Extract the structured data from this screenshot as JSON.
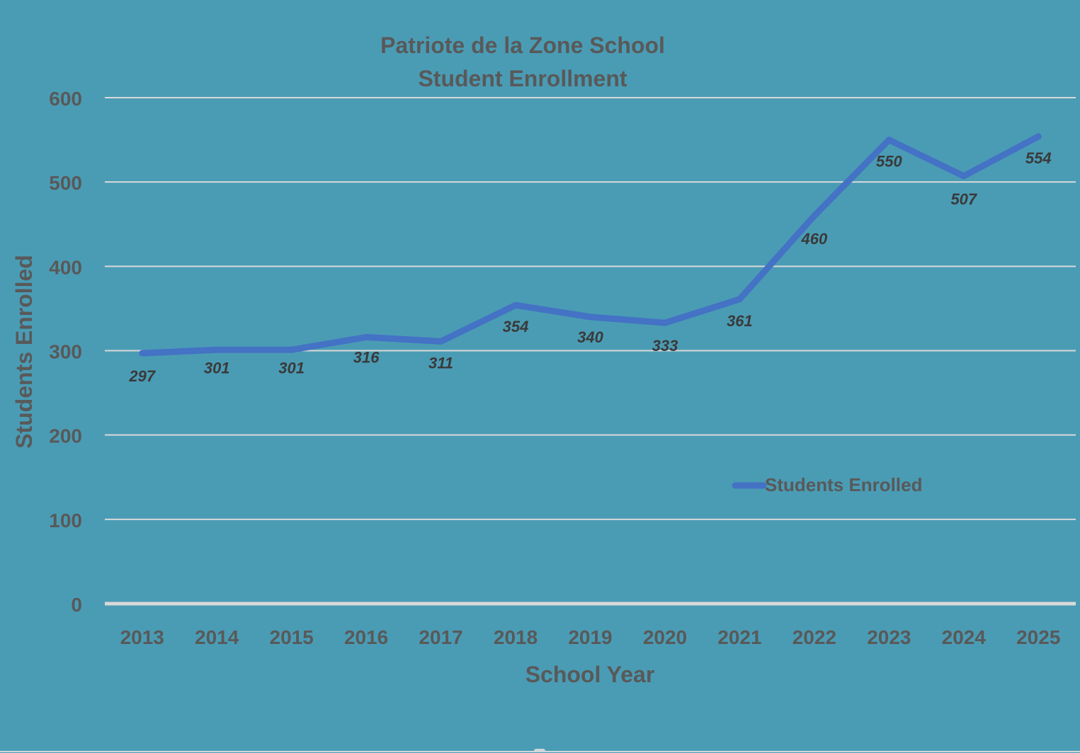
{
  "chart_data": {
    "type": "line",
    "title": "Patriote de la Zone School",
    "subtitle": "Student Enrollment",
    "xlabel": "School Year",
    "ylabel": "Students Enrolled",
    "categories": [
      "2013",
      "2014",
      "2015",
      "2016",
      "2017",
      "2018",
      "2019",
      "2020",
      "2021",
      "2022",
      "2023",
      "2024",
      "2025"
    ],
    "series": [
      {
        "name": "Students Enrolled",
        "color": "#4472c4",
        "values": [
          297,
          301,
          301,
          316,
          311,
          354,
          340,
          333,
          361,
          460,
          550,
          507,
          554
        ]
      }
    ],
    "ylim": [
      0,
      600
    ],
    "yticks": [
      0,
      100,
      200,
      300,
      400,
      500,
      600
    ],
    "grid": true,
    "legend_position": "inside-right",
    "data_labels": true
  },
  "colors": {
    "background": "#4a9cb5",
    "gridline": "#d9d9d9",
    "axis_line": "#d9d9d9",
    "text": "#595959",
    "label_text": "#3a3a3a",
    "line": "#4472c4"
  }
}
